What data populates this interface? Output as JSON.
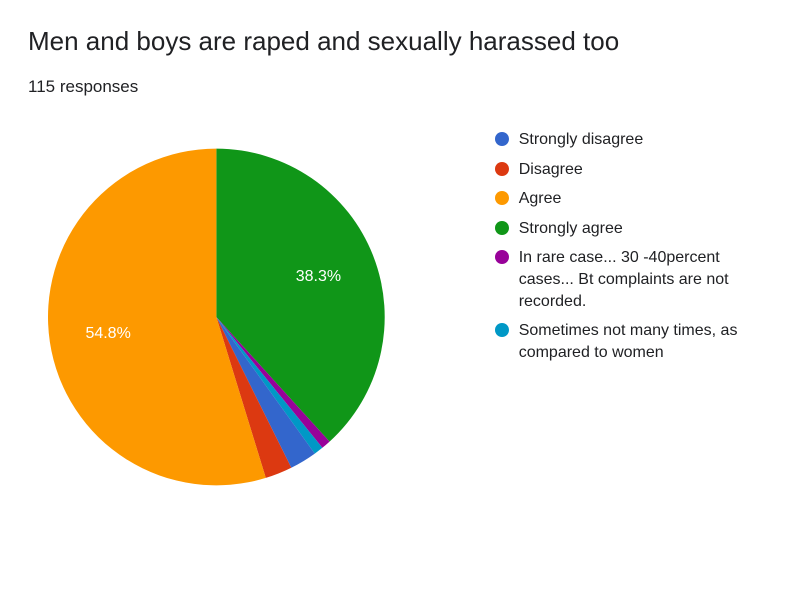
{
  "title": "Men and boys are raped and sexually harassed too",
  "responses": "115 responses",
  "chart": {
    "type": "pie",
    "diameter": 340,
    "background_color": "#ffffff",
    "text_color": "#202124",
    "title_fontsize": 26,
    "label_fontsize": 16,
    "legend_fontsize": 16,
    "slice_label_color": "#ffffff",
    "start_angle_deg": -90,
    "slices": [
      {
        "label": "Strongly agree",
        "value": 38.3,
        "color": "#109618",
        "show_pct": true
      },
      {
        "label": "In rare case... 30 -40percent cases... Bt complaints are not recorded.",
        "value": 0.9,
        "color": "#980299",
        "show_pct": false
      },
      {
        "label": "Sometimes not many times, as compared to women",
        "value": 0.9,
        "color": "#0098c6",
        "show_pct": false
      },
      {
        "label": "Strongly disagree",
        "value": 2.6,
        "color": "#3366cc",
        "show_pct": false
      },
      {
        "label": "Disagree",
        "value": 2.6,
        "color": "#dc3911",
        "show_pct": false
      },
      {
        "label": "Agree",
        "value": 54.8,
        "color": "#fd9900",
        "show_pct": true
      }
    ],
    "legend_order": [
      3,
      4,
      5,
      0,
      1,
      2
    ]
  }
}
